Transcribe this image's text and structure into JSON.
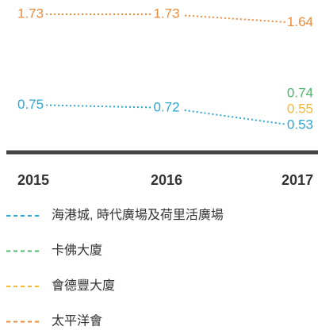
{
  "chart_data": {
    "type": "line",
    "x": [
      "2015",
      "2016",
      "2017"
    ],
    "series": [
      {
        "name": "海港城, 時代廣場及荷里活廣場",
        "color": "#2aa8d8",
        "values": [
          0.75,
          0.72,
          0.53
        ]
      },
      {
        "name": "卡佛大廈",
        "color": "#4cb86b",
        "values": [
          null,
          null,
          0.74
        ]
      },
      {
        "name": "會德豐大廈",
        "color": "#f5b731",
        "values": [
          null,
          null,
          0.55
        ]
      },
      {
        "name": "太平洋會",
        "color": "#ef8a3a",
        "values": [
          1.73,
          1.73,
          1.64
        ]
      }
    ]
  }
}
